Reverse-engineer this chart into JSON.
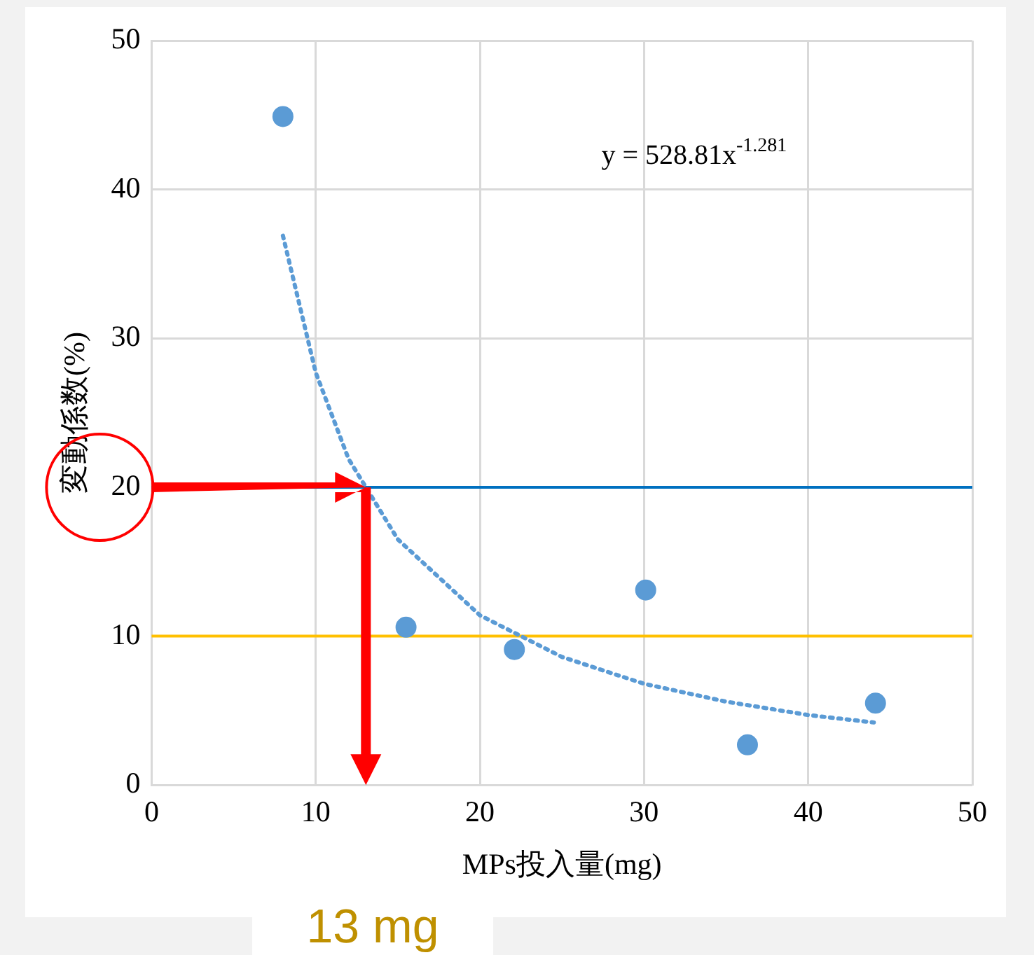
{
  "chart_data": {
    "type": "scatter",
    "xlabel": "MPs投入量(mg)",
    "ylabel": "変動係数(%)",
    "xlim": [
      0,
      50
    ],
    "xticks": [
      0,
      10,
      20,
      30,
      40,
      50
    ],
    "ylim": [
      0,
      50
    ],
    "yticks": [
      0,
      10,
      20,
      30,
      40,
      50
    ],
    "grid": true,
    "legend": false,
    "marker": "circle",
    "series": [
      {
        "color": "#5b9bd5",
        "x": [
          8,
          15.5,
          22.1,
          30.1,
          36.3,
          44.1
        ],
        "values": [
          44.9,
          10.6,
          9.1,
          13.1,
          2.7,
          5.5
        ]
      },
      {
        "type": "line",
        "color": "#5b9bd5",
        "marker": "none",
        "line_style": "dotted",
        "x": [
          8,
          10,
          12,
          15,
          20,
          25,
          30,
          35,
          40,
          44
        ],
        "values": [
          36.9,
          27.7,
          21.9,
          16.5,
          11.4,
          8.6,
          6.8,
          5.6,
          4.7,
          4.2
        ]
      }
    ],
    "ref_lines": [
      {
        "axis": "y",
        "value": 20,
        "color": "#0070c0"
      },
      {
        "axis": "y",
        "value": 10,
        "color": "#ffc000"
      }
    ],
    "annotations": [
      "y = 528.81x$^{-1.281}$",
      "13 mg"
    ]
  }
}
